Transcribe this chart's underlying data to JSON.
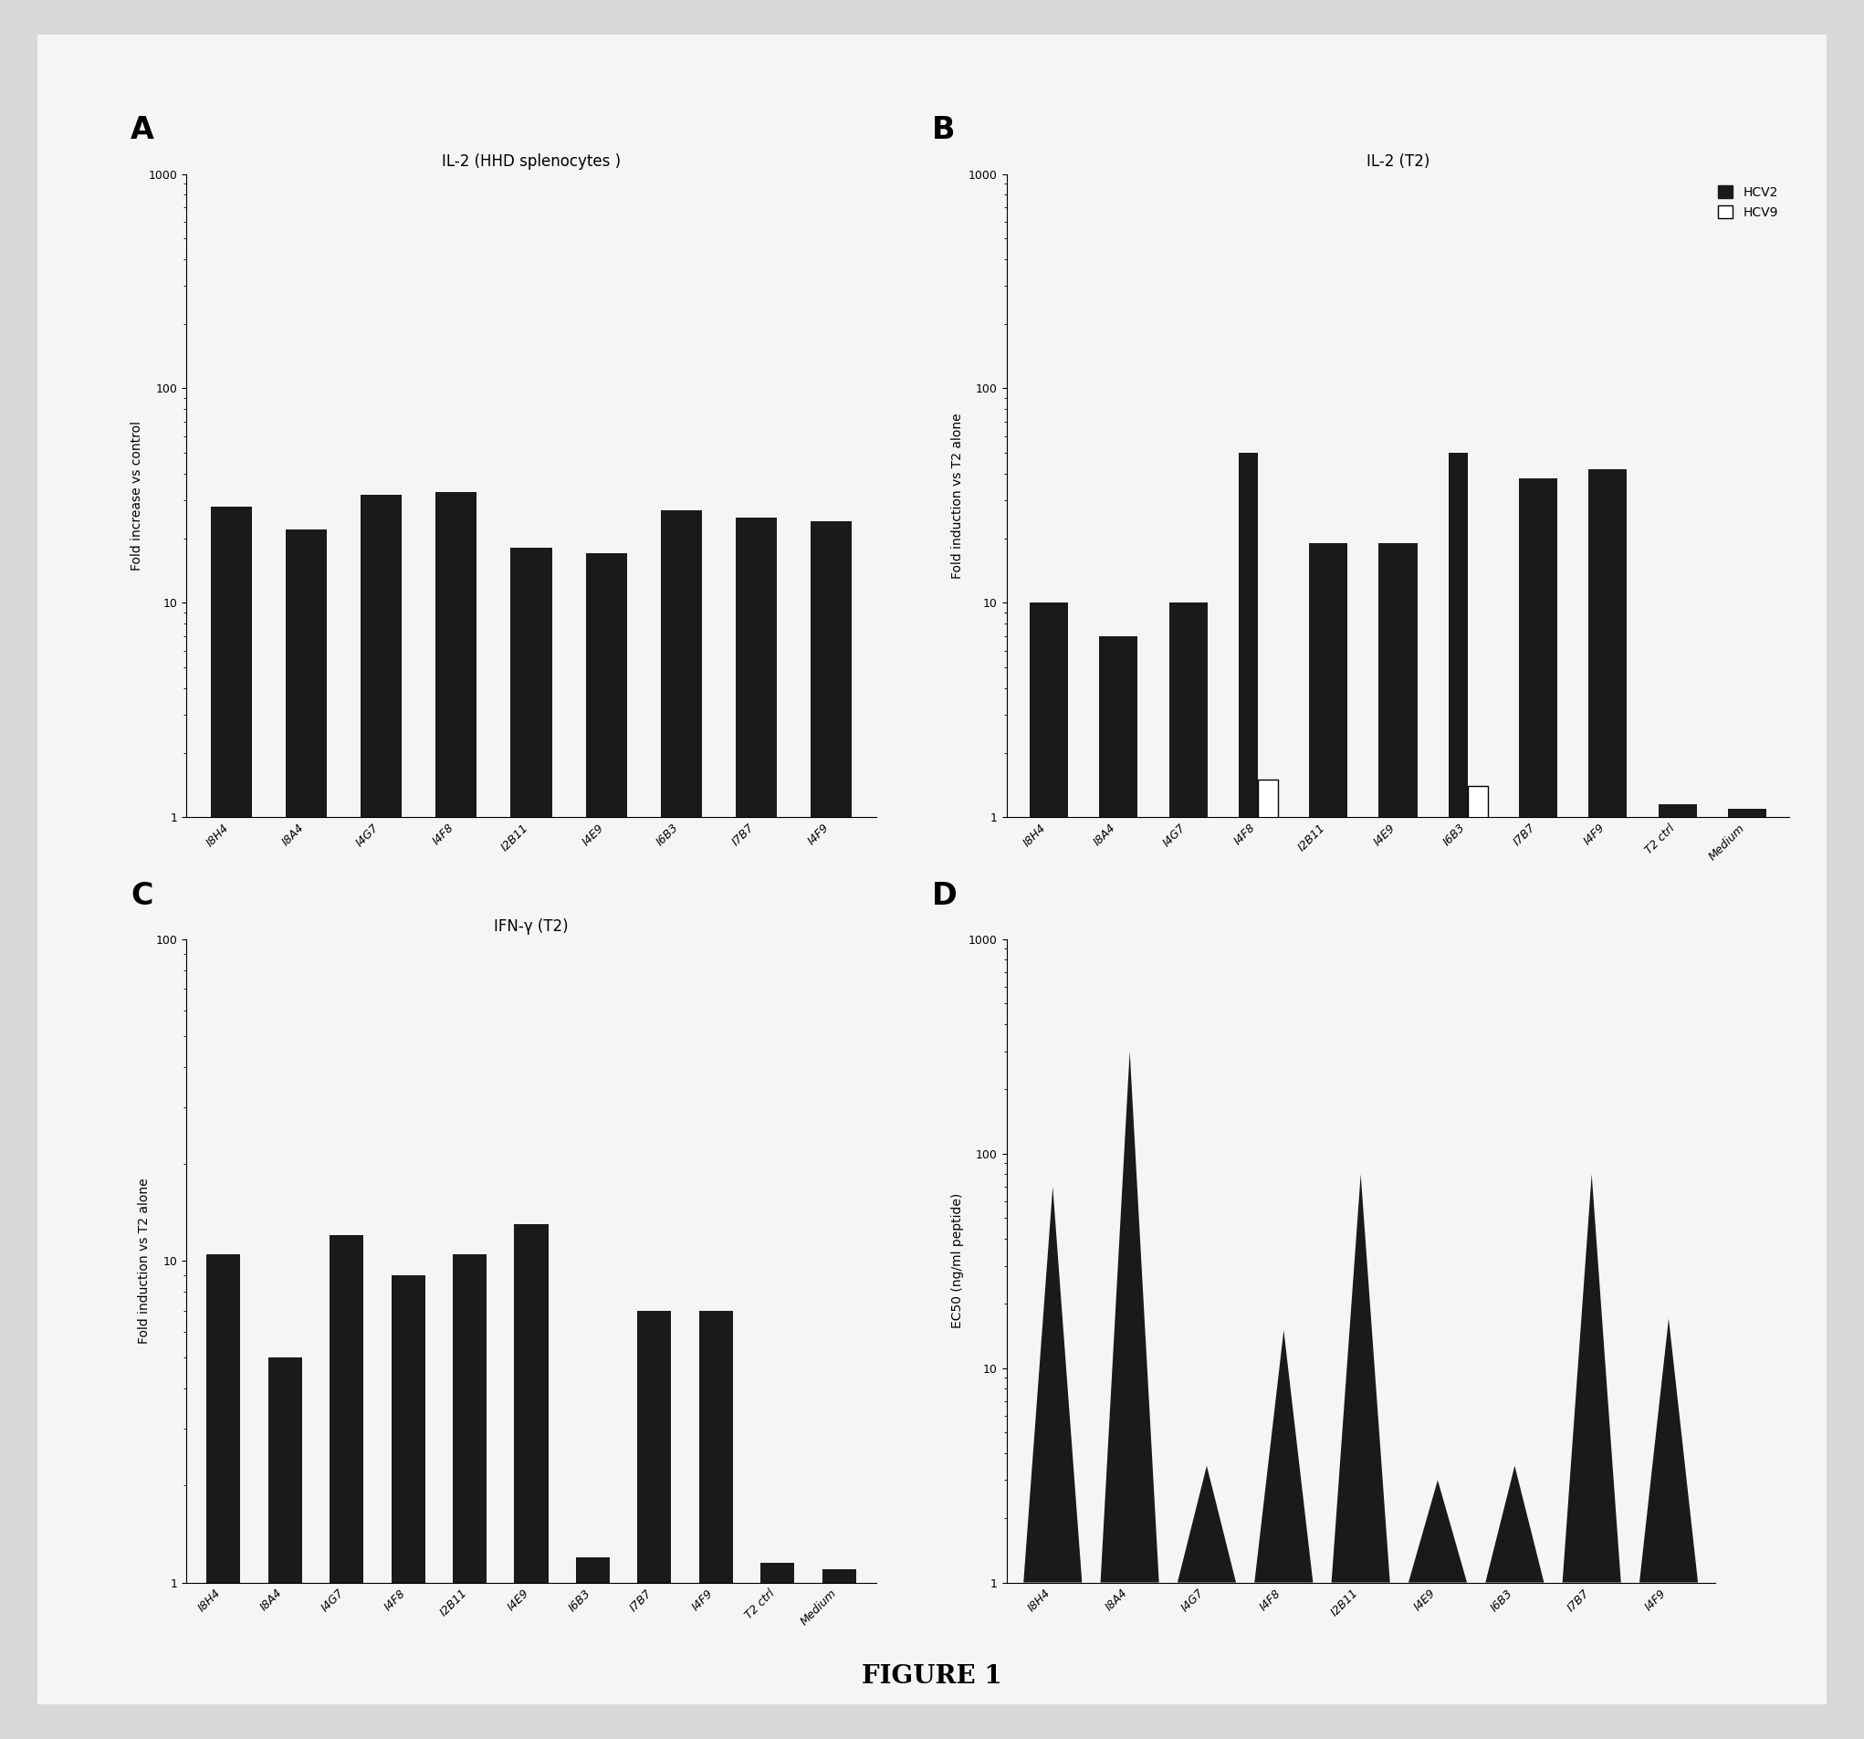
{
  "panel_A": {
    "title": "IL-2 (HHD splenocytes )",
    "ylabel": "Fold increase vs control",
    "categories": [
      "I8H4",
      "I8A4",
      "I4G7",
      "I4F8",
      "I2B11",
      "I4E9",
      "I6B3",
      "I7B7",
      "I4F9"
    ],
    "values": [
      28,
      22,
      32,
      33,
      18,
      17,
      27,
      25,
      24
    ],
    "ylim_min": 1,
    "ylim_max": 1000
  },
  "panel_B": {
    "title": "IL-2 (T2)",
    "ylabel": "Fold induction vs T2 alone",
    "categories": [
      "I8H4",
      "I8A4",
      "I4G7",
      "I4F8",
      "I2B11",
      "I4E9",
      "I6B3",
      "I7B7",
      "I4F9",
      "T2 ctrl",
      "Medium"
    ],
    "hcv2_values": [
      10,
      7,
      10,
      50,
      19,
      19,
      50,
      38,
      42,
      1.15,
      1.1
    ],
    "hcv9_values": [
      null,
      null,
      null,
      1.5,
      null,
      null,
      1.4,
      null,
      null,
      null,
      null
    ],
    "ylim_min": 1,
    "ylim_max": 1000
  },
  "panel_C": {
    "title": "IFN-γ (T2)",
    "ylabel": "Fold induction vs T2 alone",
    "categories": [
      "I8H4",
      "I8A4",
      "I4G7",
      "I4F8",
      "I2B11",
      "I4E9",
      "I6B3",
      "I7B7",
      "I4F9",
      "T2 ctrl",
      "Medium"
    ],
    "values": [
      10.5,
      5,
      12,
      9,
      10.5,
      13,
      1.2,
      7,
      7,
      1.15,
      1.1
    ],
    "ylim_min": 1,
    "ylim_max": 100
  },
  "panel_D": {
    "title": "",
    "ylabel": "EC50 (ng/ml peptide)",
    "categories": [
      "I8H4",
      "I8A4",
      "I4G7",
      "I4F8",
      "I2B11",
      "I4E9",
      "I6B3",
      "I7B7",
      "I4F9"
    ],
    "values": [
      70,
      300,
      3.5,
      15,
      80,
      3,
      3.5,
      80,
      17
    ],
    "ylim_min": 1,
    "ylim_max": 1000
  },
  "bar_color": "#1a1a1a",
  "background_color": "#f0f0f0",
  "figure_title": "FIGURE 1",
  "outer_bg": "#e8e8e8"
}
